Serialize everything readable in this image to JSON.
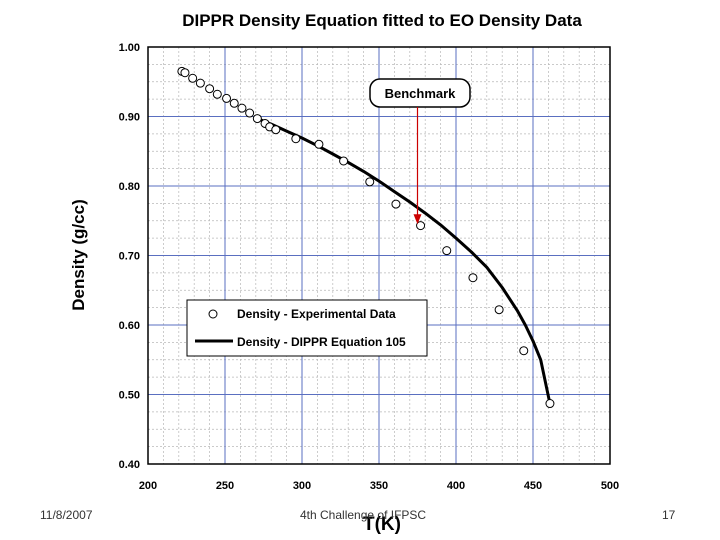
{
  "chart_data": {
    "type": "scatter",
    "title": "DIPPR Density Equation fitted to EO Density Data",
    "xlabel": "T(K)",
    "ylabel": "Density (g/cc)",
    "xlim": [
      200,
      500
    ],
    "ylim": [
      0.4,
      1.0
    ],
    "xticks": [
      "200",
      "250",
      "300",
      "350",
      "400",
      "450",
      "500"
    ],
    "yticks": [
      "0.40",
      "0.50",
      "0.60",
      "0.70",
      "0.80",
      "0.90",
      "1.00"
    ],
    "grid": true,
    "legend_position": "center-right",
    "series": [
      {
        "name": "Density - Experimental Data",
        "kind": "scatter",
        "x": [
          222,
          224,
          229,
          234,
          240,
          245,
          251,
          256,
          261,
          266,
          271,
          276,
          279,
          283,
          296,
          311,
          327,
          344,
          361,
          377,
          394,
          411,
          428,
          444,
          461
        ],
        "y": [
          0.965,
          0.963,
          0.955,
          0.948,
          0.94,
          0.932,
          0.926,
          0.919,
          0.912,
          0.905,
          0.897,
          0.89,
          0.885,
          0.881,
          0.868,
          0.86,
          0.836,
          0.806,
          0.774,
          0.743,
          0.707,
          0.668,
          0.622,
          0.563,
          0.487
        ]
      },
      {
        "name": "Density - DIPPR Equation 105",
        "kind": "line",
        "x": [
          270,
          280,
          290,
          300,
          310,
          320,
          330,
          340,
          350,
          360,
          370,
          380,
          390,
          400,
          410,
          420,
          430,
          440,
          445,
          450,
          455,
          461
        ],
        "y": [
          0.898,
          0.889,
          0.879,
          0.869,
          0.858,
          0.846,
          0.834,
          0.821,
          0.807,
          0.792,
          0.777,
          0.761,
          0.744,
          0.725,
          0.705,
          0.683,
          0.654,
          0.62,
          0.6,
          0.577,
          0.55,
          0.487
        ]
      }
    ],
    "annotation": {
      "text": "Benchmark",
      "x": 375,
      "y": 0.745
    }
  },
  "footer": {
    "date": "11/8/2007",
    "event": "4th Challenge of IFPSC",
    "page": "17"
  }
}
